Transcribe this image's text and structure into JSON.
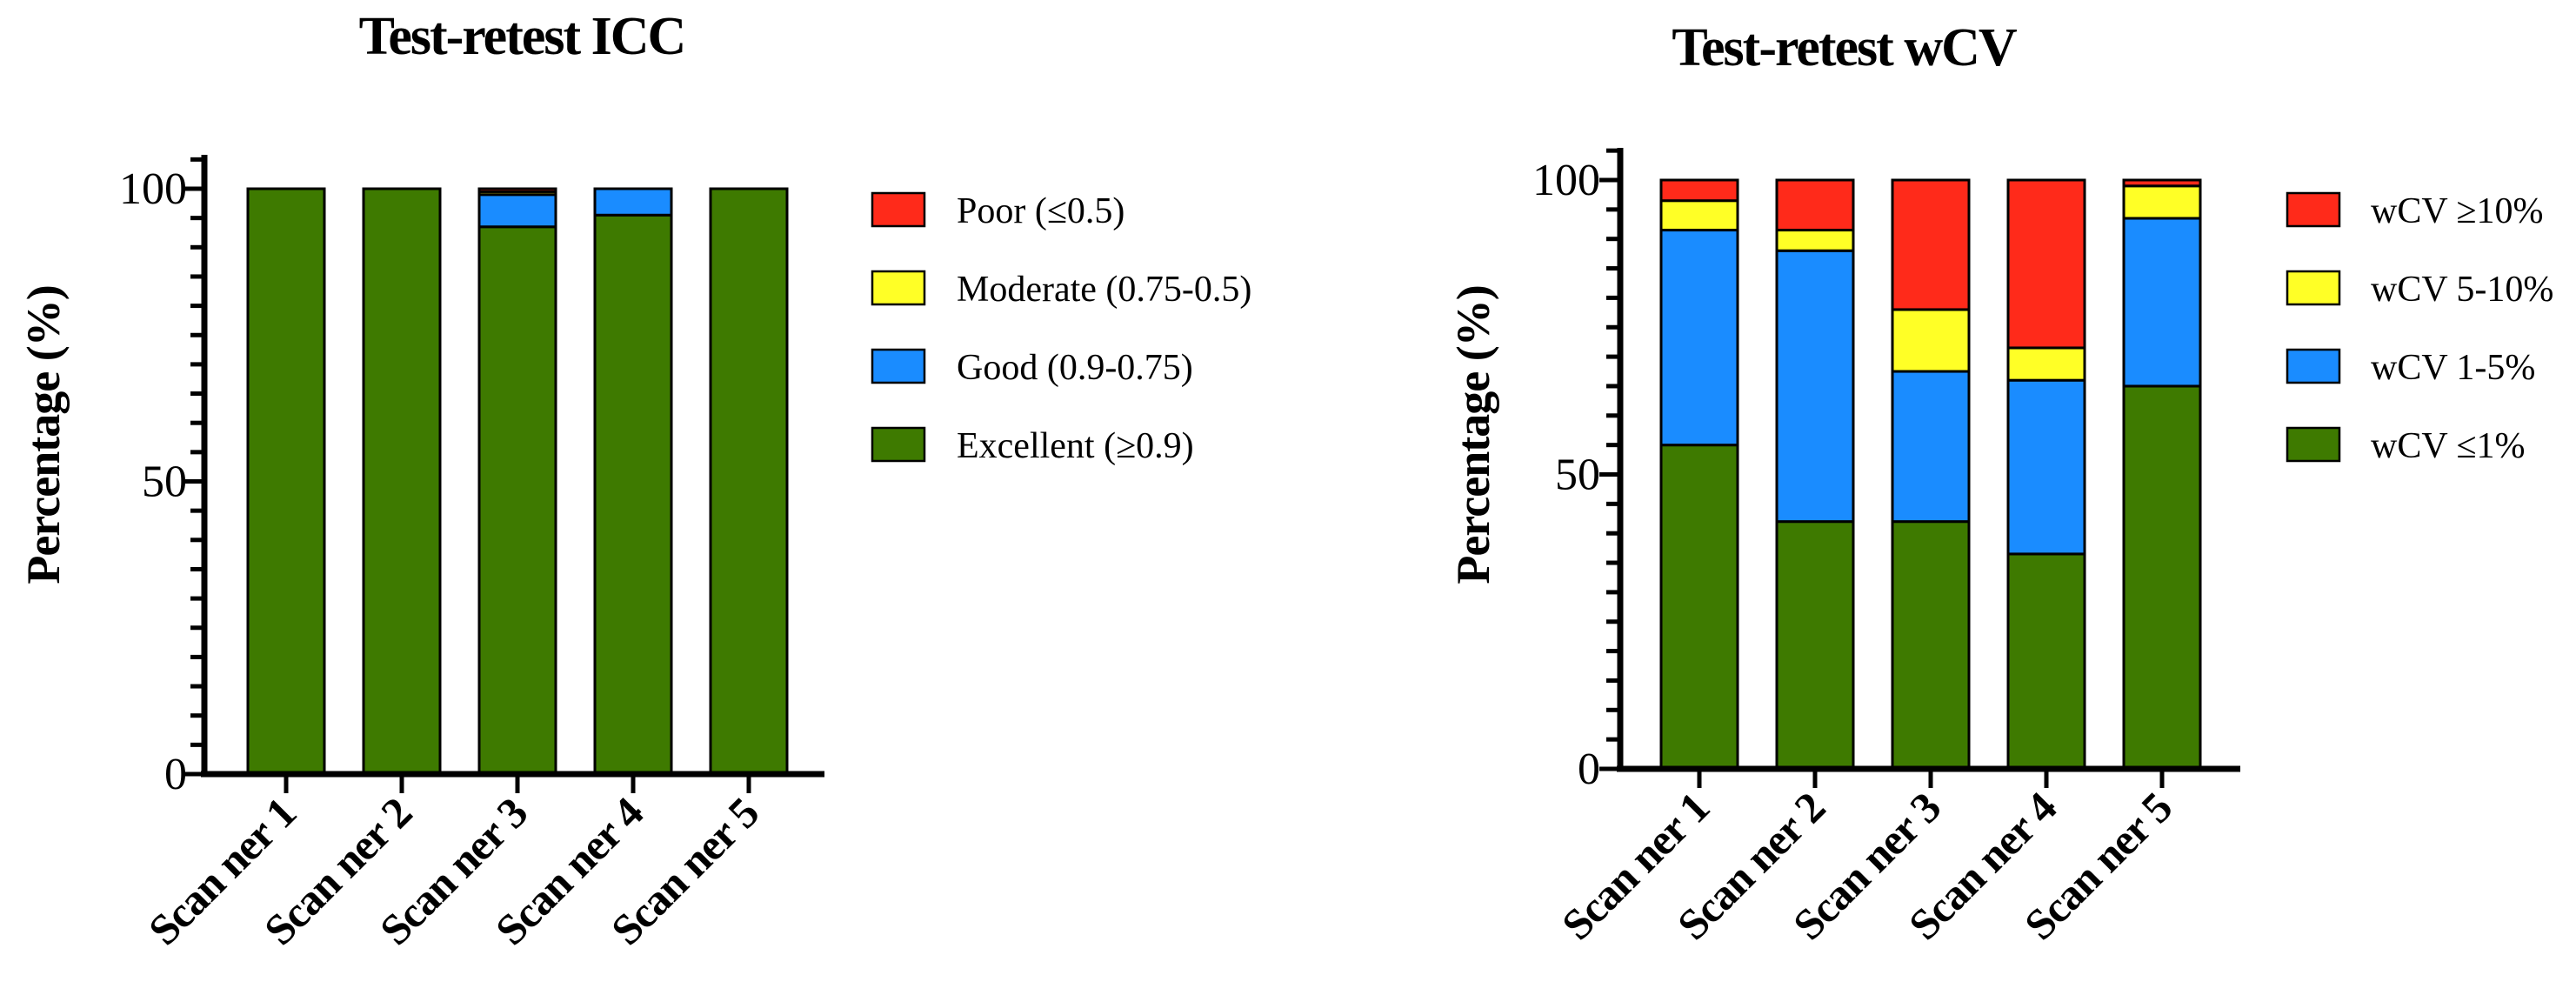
{
  "colors": {
    "poor": "#ff2a1a",
    "moderate": "#ffff26",
    "good": "#1a8cff",
    "excellent": "#3e7a00",
    "axis": "#000000"
  },
  "chart_data": [
    {
      "type": "bar",
      "stacked": true,
      "title": "Test-retest ICC",
      "xlabel": "",
      "ylabel": "Percentage (%)",
      "ylim": [
        0,
        105
      ],
      "yticks": [
        "0",
        "50",
        "100"
      ],
      "categories": [
        "Scan ner 1",
        "Scan ner 2",
        "Scan ner 3",
        "Scan ner 4",
        "Scan ner 5"
      ],
      "series": [
        {
          "name": "Excellent (≥0.9)",
          "color_key": "excellent",
          "values": [
            100,
            100,
            93.5,
            95.5,
            100
          ]
        },
        {
          "name": "Good (0.9-0.75)",
          "color_key": "good",
          "values": [
            0,
            0,
            5.5,
            4.5,
            0
          ]
        },
        {
          "name": "Moderate (0.75-0.5)",
          "color_key": "moderate",
          "values": [
            0,
            0,
            0.5,
            0,
            0
          ]
        },
        {
          "name": "Poor (≤0.5)",
          "color_key": "poor",
          "values": [
            0,
            0,
            0.5,
            0,
            0
          ]
        }
      ],
      "legend": [
        "Poor (≤0.5)",
        "Moderate (0.75-0.5)",
        "Good (0.9-0.75)",
        "Excellent (≥0.9)"
      ],
      "legend_placement": "right"
    },
    {
      "type": "bar",
      "stacked": true,
      "title": "Test-retest wCV",
      "xlabel": "",
      "ylabel": "Percentage (%)",
      "ylim": [
        0,
        105
      ],
      "yticks": [
        "0",
        "50",
        "100"
      ],
      "categories": [
        "Scan ner 1",
        "Scan ner 2",
        "Scan ner 3",
        "Scan ner 4",
        "Scan ner 5"
      ],
      "series": [
        {
          "name": "wCV ≤1%",
          "color_key": "excellent",
          "values": [
            55,
            42,
            42,
            36.5,
            65
          ]
        },
        {
          "name": "wCV 1-5%",
          "color_key": "good",
          "values": [
            36.5,
            46,
            25.5,
            29.5,
            28.5
          ]
        },
        {
          "name": "wCV 5-10%",
          "color_key": "moderate",
          "values": [
            5,
            3.5,
            10.5,
            5.5,
            5.5
          ]
        },
        {
          "name": "wCV ≥10%",
          "color_key": "poor",
          "values": [
            3.5,
            8.5,
            22,
            28.5,
            1
          ]
        }
      ],
      "legend": [
        "wCV ≥10%",
        "wCV 5-10%",
        "wCV 1-5%",
        "wCV ≤1%"
      ],
      "legend_placement": "right"
    }
  ]
}
